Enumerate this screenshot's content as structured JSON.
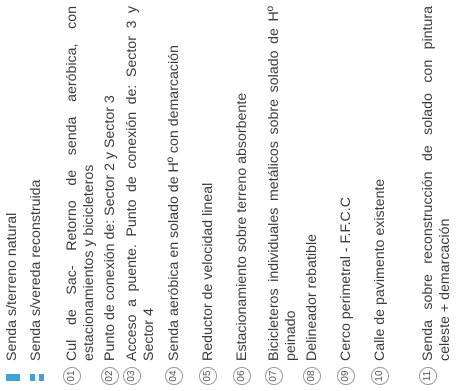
{
  "legend": {
    "lines": [
      {
        "style": "solid",
        "label": "Senda s/terreno natural"
      },
      {
        "style": "dashed",
        "label": "Senda s/vereda reconstruida"
      }
    ],
    "items": [
      {
        "num": "01",
        "text": "Cul de Sac- Retorno de senda aeróbica, con estacionamientos y bicicleteros"
      },
      {
        "num": "02",
        "text": "Punto de conexión de: Sector 2 y Sector 3"
      },
      {
        "num": "03",
        "text": "Acceso a puente. Punto de conexión de: Sector 3 y Sector 4"
      },
      {
        "num": "04",
        "text": "Senda aeróbica en solado de Hº con demarcación"
      },
      {
        "num": "05",
        "text": "Reductor de velocidad lineal"
      },
      {
        "num": "06",
        "text": "Estacionamiento sobre terreno absorbente"
      },
      {
        "num": "07",
        "text": "Bicicleteros individuales metálicos sobre solado de Hº peinado"
      },
      {
        "num": "08",
        "text": "Delineador rebatible"
      },
      {
        "num": "09",
        "text": "Cerco perimetral - F.F.C.C"
      },
      {
        "num": "10",
        "text": "Calle de pavimento existente"
      },
      {
        "num": "11",
        "text": "Senda sobre reconstrucción de solado con pintura celeste + demarcación"
      }
    ]
  },
  "colors": {
    "accent": "#3fa2d8",
    "text": "#3a3a3a"
  }
}
